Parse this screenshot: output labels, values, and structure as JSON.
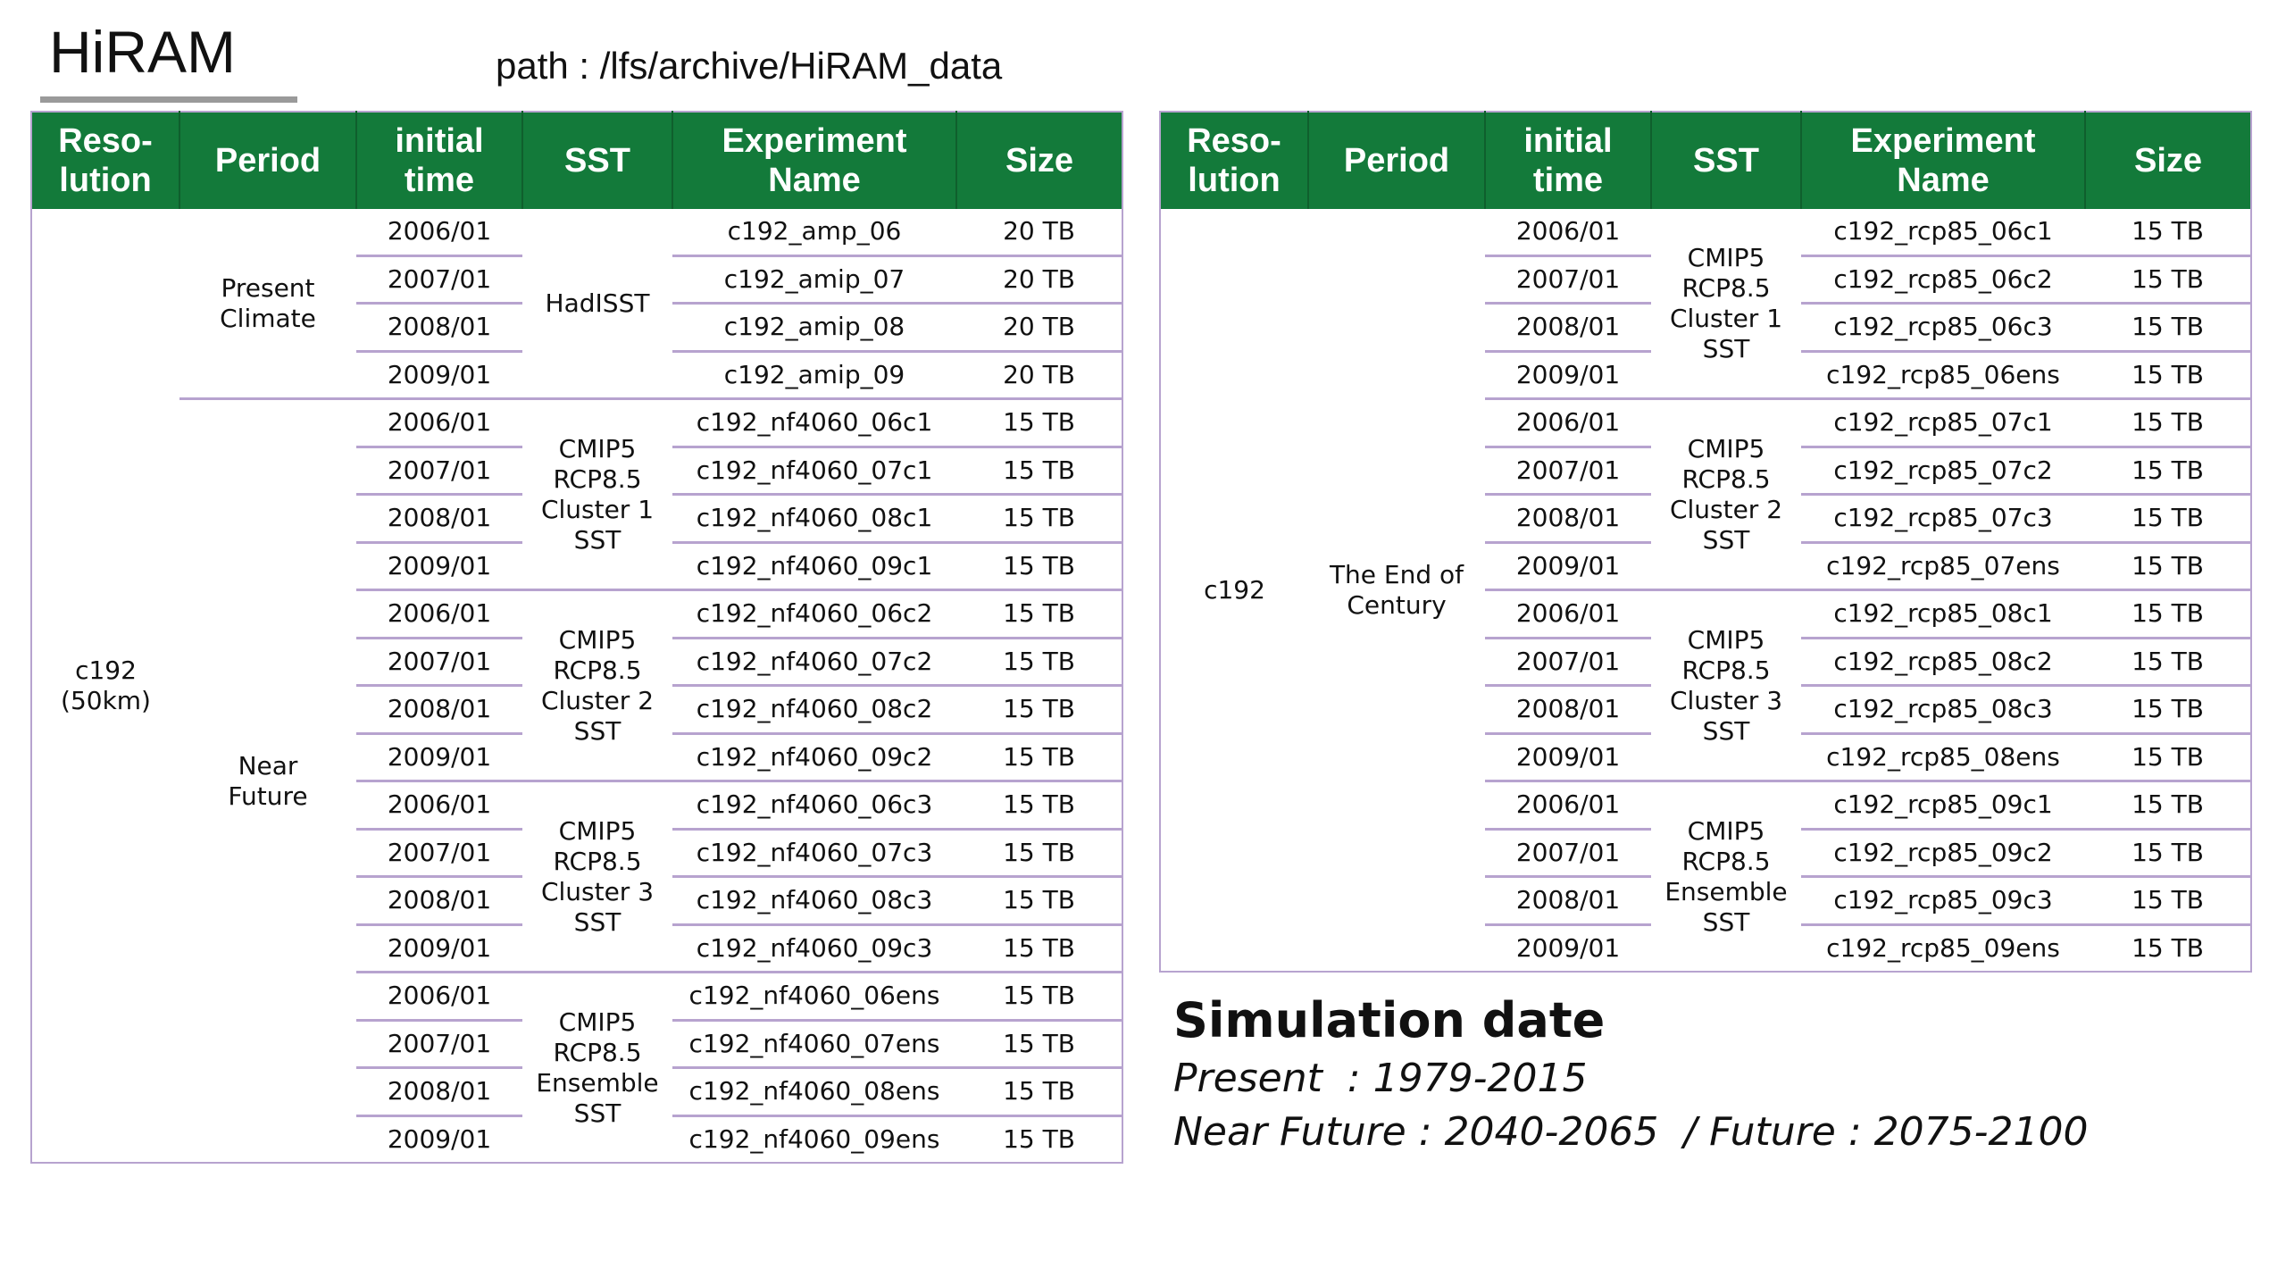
{
  "title": "HiRAM",
  "path": "path : /lfs/archive/HiRAM_data",
  "headers": {
    "resolution": "Reso-\nlution",
    "period": "Period",
    "initial_time": "initial\ntime",
    "sst": "SST",
    "experiment": "Experiment\nName",
    "size": "Size"
  },
  "left_table": {
    "resolution": "c192\n(50km)",
    "periods": [
      {
        "label": "Present\nClimate"
      },
      {
        "label": "Near\nFuture"
      }
    ],
    "sst_groups": [
      "HadISST",
      "CMIP5\nRCP8.5\nCluster 1\nSST",
      "CMIP5\nRCP8.5\nCluster 2\nSST",
      "CMIP5\nRCP8.5\nCluster 3\nSST",
      "CMIP5\nRCP8.5\nEnsemble\nSST"
    ],
    "rows": [
      {
        "time": "2006/01",
        "exp": "c192_amp_06",
        "size": "20 TB"
      },
      {
        "time": "2007/01",
        "exp": "c192_amip_07",
        "size": "20 TB"
      },
      {
        "time": "2008/01",
        "exp": "c192_amip_08",
        "size": "20 TB"
      },
      {
        "time": "2009/01",
        "exp": "c192_amip_09",
        "size": "20 TB"
      },
      {
        "time": "2006/01",
        "exp": "c192_nf4060_06c1",
        "size": "15 TB"
      },
      {
        "time": "2007/01",
        "exp": "c192_nf4060_07c1",
        "size": "15 TB"
      },
      {
        "time": "2008/01",
        "exp": "c192_nf4060_08c1",
        "size": "15 TB"
      },
      {
        "time": "2009/01",
        "exp": "c192_nf4060_09c1",
        "size": "15 TB"
      },
      {
        "time": "2006/01",
        "exp": "c192_nf4060_06c2",
        "size": "15 TB"
      },
      {
        "time": "2007/01",
        "exp": "c192_nf4060_07c2",
        "size": "15 TB"
      },
      {
        "time": "2008/01",
        "exp": "c192_nf4060_08c2",
        "size": "15 TB"
      },
      {
        "time": "2009/01",
        "exp": "c192_nf4060_09c2",
        "size": "15 TB"
      },
      {
        "time": "2006/01",
        "exp": "c192_nf4060_06c3",
        "size": "15 TB"
      },
      {
        "time": "2007/01",
        "exp": "c192_nf4060_07c3",
        "size": "15 TB"
      },
      {
        "time": "2008/01",
        "exp": "c192_nf4060_08c3",
        "size": "15 TB"
      },
      {
        "time": "2009/01",
        "exp": "c192_nf4060_09c3",
        "size": "15 TB"
      },
      {
        "time": "2006/01",
        "exp": "c192_nf4060_06ens",
        "size": "15 TB"
      },
      {
        "time": "2007/01",
        "exp": "c192_nf4060_07ens",
        "size": "15 TB"
      },
      {
        "time": "2008/01",
        "exp": "c192_nf4060_08ens",
        "size": "15 TB"
      },
      {
        "time": "2009/01",
        "exp": "c192_nf4060_09ens",
        "size": "15 TB"
      }
    ]
  },
  "right_table": {
    "resolution": "c192",
    "period": "The End of\nCentury",
    "sst_groups": [
      "CMIP5\nRCP8.5\nCluster 1\nSST",
      "CMIP5\nRCP8.5\nCluster 2\nSST",
      "CMIP5\nRCP8.5\nCluster 3\nSST",
      "CMIP5\nRCP8.5\nEnsemble\nSST"
    ],
    "rows": [
      {
        "time": "2006/01",
        "exp": "c192_rcp85_06c1",
        "size": "15 TB"
      },
      {
        "time": "2007/01",
        "exp": "c192_rcp85_06c2",
        "size": "15 TB"
      },
      {
        "time": "2008/01",
        "exp": "c192_rcp85_06c3",
        "size": "15 TB"
      },
      {
        "time": "2009/01",
        "exp": "c192_rcp85_06ens",
        "size": "15 TB"
      },
      {
        "time": "2006/01",
        "exp": "c192_rcp85_07c1",
        "size": "15 TB"
      },
      {
        "time": "2007/01",
        "exp": "c192_rcp85_07c2",
        "size": "15 TB"
      },
      {
        "time": "2008/01",
        "exp": "c192_rcp85_07c3",
        "size": "15 TB"
      },
      {
        "time": "2009/01",
        "exp": "c192_rcp85_07ens",
        "size": "15 TB"
      },
      {
        "time": "2006/01",
        "exp": "c192_rcp85_08c1",
        "size": "15 TB"
      },
      {
        "time": "2007/01",
        "exp": "c192_rcp85_08c2",
        "size": "15 TB"
      },
      {
        "time": "2008/01",
        "exp": "c192_rcp85_08c3",
        "size": "15 TB"
      },
      {
        "time": "2009/01",
        "exp": "c192_rcp85_08ens",
        "size": "15 TB"
      },
      {
        "time": "2006/01",
        "exp": "c192_rcp85_09c1",
        "size": "15 TB"
      },
      {
        "time": "2007/01",
        "exp": "c192_rcp85_09c2",
        "size": "15 TB"
      },
      {
        "time": "2008/01",
        "exp": "c192_rcp85_09c3",
        "size": "15 TB"
      },
      {
        "time": "2009/01",
        "exp": "c192_rcp85_09ens",
        "size": "15 TB"
      }
    ]
  },
  "simulation": {
    "title": "Simulation date",
    "line1": "Present  : 1979-2015",
    "line2": "Near Future : 2040-2065  / Future : 2075-2100"
  }
}
